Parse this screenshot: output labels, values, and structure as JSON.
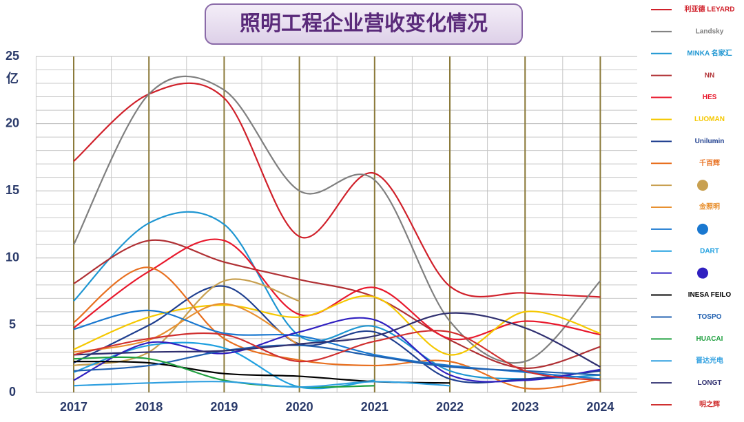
{
  "chart_data": {
    "type": "line",
    "title": "照明工程企业营收变化情况",
    "y_unit": "亿",
    "categories": [
      "2017",
      "2018",
      "2019",
      "2020",
      "2021",
      "2022",
      "2023",
      "2024"
    ],
    "ylim": [
      0,
      25
    ],
    "yticks": [
      0,
      5,
      10,
      15,
      20,
      25
    ],
    "grid": true,
    "smooth": true,
    "legend": "right",
    "series": [
      {
        "name": "利亚德 LEYARD",
        "color": "#d0202a",
        "values": [
          17.2,
          22.2,
          21.9,
          11.6,
          16.3,
          7.9,
          7.4,
          7.1
        ]
      },
      {
        "name": "Landsky",
        "color": "#7f7f7f",
        "values": [
          11.0,
          22.2,
          22.5,
          15.0,
          15.8,
          5.3,
          2.3,
          8.3
        ]
      },
      {
        "name": "MINKA 名家汇",
        "color": "#1e96d2",
        "values": [
          6.8,
          12.6,
          12.5,
          4.2,
          4.9,
          1.6,
          1.0,
          1.3
        ]
      },
      {
        "name": "NN",
        "color": "#b03034",
        "values": [
          8.1,
          11.3,
          9.7,
          8.4,
          7.1,
          3.9,
          1.8,
          3.4
        ]
      },
      {
        "name": "HES",
        "color": "#e8182c",
        "values": [
          4.8,
          9.0,
          11.3,
          5.8,
          7.8,
          4.0,
          5.3,
          4.3
        ]
      },
      {
        "name": "LUOMAN",
        "color": "#f5c800",
        "values": [
          3.2,
          5.6,
          6.5,
          5.6,
          7.1,
          2.8,
          6.0,
          4.4
        ]
      },
      {
        "name": "Unilumin",
        "color": "#1f3f8f",
        "values": [
          2.2,
          5.0,
          7.9,
          3.6,
          4.5,
          1.0,
          1.0,
          1.6
        ]
      },
      {
        "name": "千百辉",
        "color": "#e87020",
        "values": [
          5.2,
          9.3,
          4.0,
          2.4,
          2.0,
          2.3,
          0.3,
          1.0
        ]
      },
      {
        "color": "#c8a050",
        "values": [
          2.0,
          3.0,
          8.3,
          6.8,
          null,
          null,
          null,
          null
        ]
      },
      {
        "name": "金照明",
        "color": "#e89030",
        "values": [
          3.0,
          3.9,
          6.6,
          3.5,
          null,
          null,
          null,
          null
        ]
      },
      {
        "color": "#1a78d0",
        "values": [
          4.7,
          6.1,
          4.4,
          4.2,
          2.8,
          2.0,
          1.5,
          1.0
        ]
      },
      {
        "name": "DART",
        "color": "#20a0e0",
        "values": [
          1.5,
          3.5,
          3.3,
          0.4,
          0.9,
          null,
          null,
          null
        ]
      },
      {
        "color": "#3020c0",
        "values": [
          0.9,
          3.7,
          2.9,
          4.5,
          5.4,
          1.3,
          0.9,
          1.7
        ]
      },
      {
        "name": "INESA FEILO",
        "color": "#000000",
        "values": [
          2.3,
          2.2,
          1.4,
          1.2,
          0.8,
          0.7,
          null,
          null
        ]
      },
      {
        "name": "TOSPO",
        "color": "#2060b0",
        "values": [
          1.6,
          2.0,
          3.1,
          3.5,
          2.7,
          1.9,
          1.6,
          1.3
        ]
      },
      {
        "name": "HUACAI",
        "color": "#20a040",
        "values": [
          2.5,
          2.5,
          0.9,
          0.4,
          0.5,
          null,
          null,
          null
        ]
      },
      {
        "name": "晋达光电",
        "color": "#30a0e0",
        "values": [
          0.5,
          0.7,
          0.8,
          0.4,
          0.8,
          0.5,
          null,
          null
        ]
      },
      {
        "name": "LONGT",
        "color": "#303070",
        "values": [
          2.8,
          3.0,
          3.1,
          3.6,
          4.2,
          5.9,
          4.8,
          1.9
        ]
      },
      {
        "name": "明之辉",
        "color": "#d03030",
        "values": [
          2.8,
          4.0,
          4.3,
          2.3,
          3.8,
          4.5,
          1.6,
          0.9
        ]
      }
    ]
  }
}
